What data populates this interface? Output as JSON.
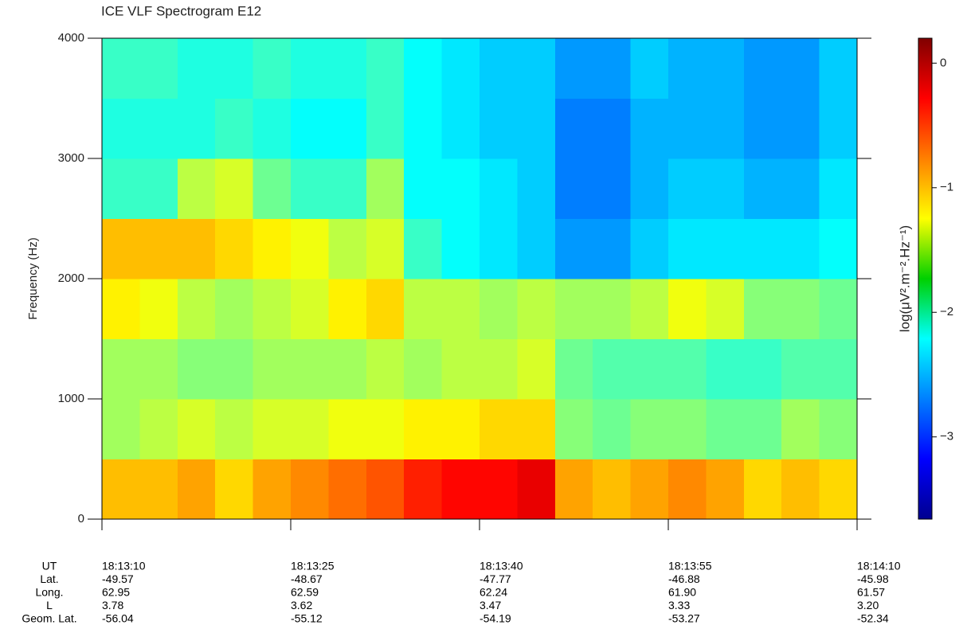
{
  "chart_data": {
    "type": "heatmap",
    "title": "ICE VLF Spectrogram E12",
    "y_label": "Frequency (Hz)",
    "ylim": [
      0,
      4000
    ],
    "yticks": [
      0,
      1000,
      2000,
      3000,
      4000
    ],
    "ybins": [
      0,
      500,
      1000,
      1500,
      2000,
      2500,
      3000,
      3500,
      4000
    ],
    "colorbar_label": "log(μV².m⁻².Hz⁻¹)",
    "clim": [
      -3.66,
      0.2
    ],
    "cticks": [
      0,
      {
        "value": -1,
        "label": "−1"
      },
      {
        "value": -2,
        "label": "−2"
      },
      {
        "value": -3,
        "label": "−3"
      }
    ],
    "colormap": "jet",
    "values": [
      [
        -1.0,
        -1.0,
        -0.9,
        -1.1,
        -0.9,
        -0.8,
        -0.7,
        -0.6,
        -0.4,
        -0.3,
        -0.3,
        -0.2,
        -0.9,
        -1.0,
        -0.9,
        -0.8,
        -0.9,
        -1.1,
        -1.0,
        -1.1
      ],
      [
        -1.6,
        -1.5,
        -1.4,
        -1.5,
        -1.4,
        -1.4,
        -1.3,
        -1.3,
        -1.2,
        -1.2,
        -1.1,
        -1.1,
        -1.7,
        -1.8,
        -1.7,
        -1.7,
        -1.8,
        -1.8,
        -1.6,
        -1.7
      ],
      [
        -1.6,
        -1.6,
        -1.7,
        -1.7,
        -1.6,
        -1.6,
        -1.6,
        -1.5,
        -1.6,
        -1.5,
        -1.5,
        -1.4,
        -1.8,
        -1.9,
        -1.9,
        -1.9,
        -2.0,
        -2.0,
        -1.9,
        -1.9
      ],
      [
        -1.2,
        -1.3,
        -1.5,
        -1.6,
        -1.5,
        -1.4,
        -1.2,
        -1.1,
        -1.5,
        -1.5,
        -1.6,
        -1.5,
        -1.6,
        -1.6,
        -1.5,
        -1.3,
        -1.4,
        -1.7,
        -1.7,
        -1.8
      ],
      [
        -1.0,
        -1.0,
        -1.0,
        -1.1,
        -1.2,
        -1.3,
        -1.5,
        -1.4,
        -2.0,
        -2.2,
        -2.3,
        -2.4,
        -2.6,
        -2.6,
        -2.4,
        -2.3,
        -2.3,
        -2.3,
        -2.3,
        -2.2
      ],
      [
        -2.0,
        -2.0,
        -1.5,
        -1.4,
        -1.8,
        -2.0,
        -2.0,
        -1.6,
        -2.2,
        -2.2,
        -2.3,
        -2.4,
        -2.7,
        -2.7,
        -2.5,
        -2.4,
        -2.4,
        -2.5,
        -2.5,
        -2.3
      ],
      [
        -2.1,
        -2.1,
        -2.1,
        -2.0,
        -2.1,
        -2.2,
        -2.2,
        -2.0,
        -2.2,
        -2.3,
        -2.4,
        -2.4,
        -2.7,
        -2.7,
        -2.5,
        -2.5,
        -2.5,
        -2.6,
        -2.6,
        -2.4
      ],
      [
        -2.0,
        -2.0,
        -2.1,
        -2.1,
        -2.0,
        -2.1,
        -2.1,
        -2.0,
        -2.2,
        -2.3,
        -2.4,
        -2.4,
        -2.6,
        -2.6,
        -2.4,
        -2.5,
        -2.5,
        -2.6,
        -2.6,
        -2.4
      ]
    ],
    "x_table": {
      "row_labels": [
        "UT",
        "Lat.",
        "Long.",
        "L",
        "Geom. Lat."
      ],
      "columns": [
        [
          "18:13:10",
          "-49.57",
          "62.95",
          "3.78",
          "-56.04"
        ],
        [
          "18:13:25",
          "-48.67",
          "62.59",
          "3.62",
          "-55.12"
        ],
        [
          "18:13:40",
          "-47.77",
          "62.24",
          "3.47",
          "-54.19"
        ],
        [
          "18:13:55",
          "-46.88",
          "61.90",
          "3.33",
          "-53.27"
        ],
        [
          "18:14:10",
          "-45.98",
          "61.57",
          "3.20",
          "-52.34"
        ]
      ]
    }
  }
}
